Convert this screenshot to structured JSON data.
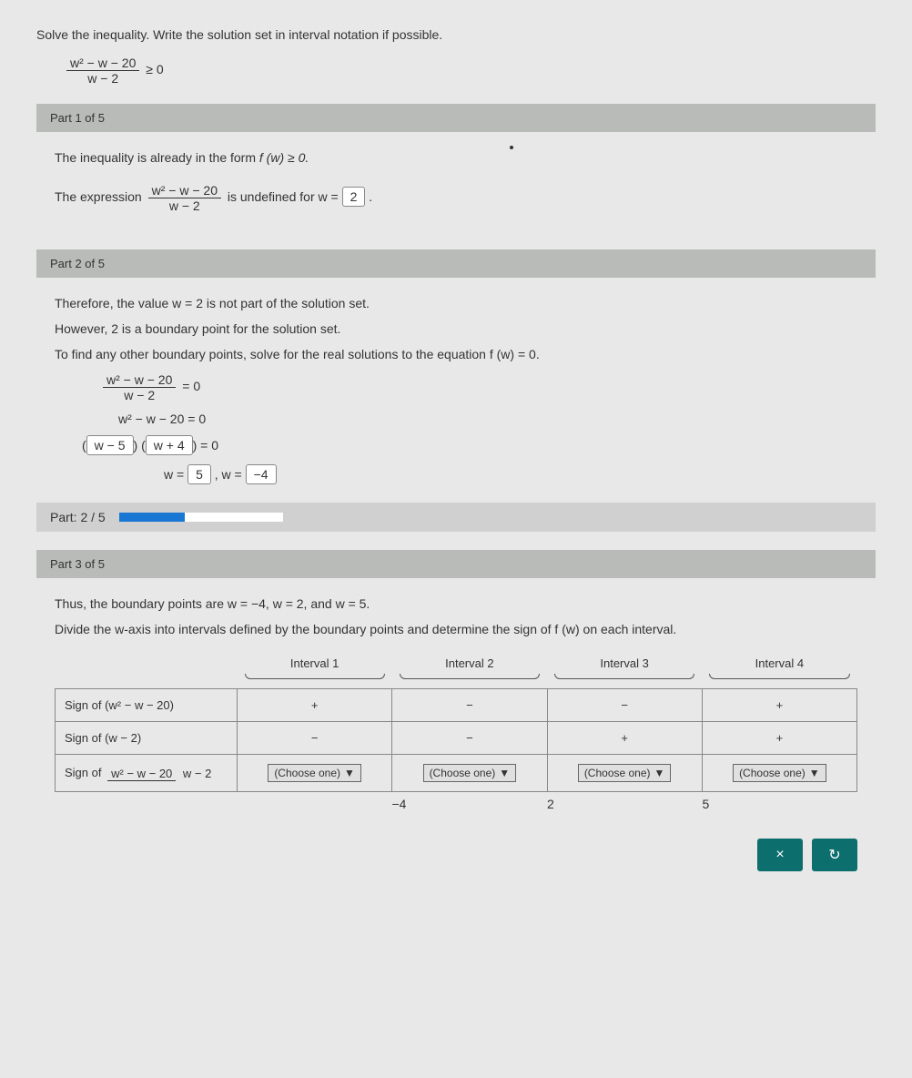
{
  "instruction": "Solve the inequality. Write the solution set in interval notation if possible.",
  "ineq_num": "w² − w − 20",
  "ineq_den": "w − 2",
  "ineq_rhs": "≥ 0",
  "part1": {
    "header": "Part 1 of 5",
    "line1_pre": "The inequality is already in the form ",
    "line1_math": "f (w) ≥ 0.",
    "expr_pre": "The expression ",
    "expr_num": "w² − w − 20",
    "expr_den": "w − 2",
    "expr_post": " is undefined for w = ",
    "ans1": "2",
    "period": "."
  },
  "part2": {
    "header": "Part 2 of 5",
    "l1": "Therefore, the value w = 2 is not part of the solution set.",
    "l2": "However, 2 is a boundary point for the solution set.",
    "l3": "To find any other boundary points, solve for the real solutions to the equation f (w) = 0.",
    "eq1_num": "w² − w − 20",
    "eq1_den": "w − 2",
    "eq1_rhs": "= 0",
    "eq2": "w² − w − 20 = 0",
    "fac1": "w − 5",
    "fac2": "w + 4",
    "fac_rhs": " = 0",
    "sol_pre1": "w = ",
    "sol1": "5",
    "sol_mid": ", w = ",
    "sol2": "−4"
  },
  "progress": {
    "label": "Part: 2 / 5",
    "percent": 40
  },
  "part3": {
    "header": "Part 3 of 5",
    "l1": "Thus, the boundary points are w = −4,  w = 2,  and w = 5.",
    "l2": "Divide the w-axis into intervals defined by the boundary points and determine the sign of f (w) on each interval.",
    "headers": [
      "Interval 1",
      "Interval 2",
      "Interval 3",
      "Interval 4"
    ],
    "row1label": "Sign of (w² − w − 20)",
    "row1": [
      "+",
      "−",
      "−",
      "+"
    ],
    "row2label": "Sign of (w − 2)",
    "row2": [
      "−",
      "−",
      "+",
      "+"
    ],
    "row3label_num": "w² − w − 20",
    "row3label_den": "w − 2",
    "row3label_pre": "Sign of ",
    "choose": "(Choose one)",
    "numline": [
      "−4",
      "2",
      "5"
    ]
  },
  "buttons": {
    "close": "×",
    "reset": "↻"
  }
}
